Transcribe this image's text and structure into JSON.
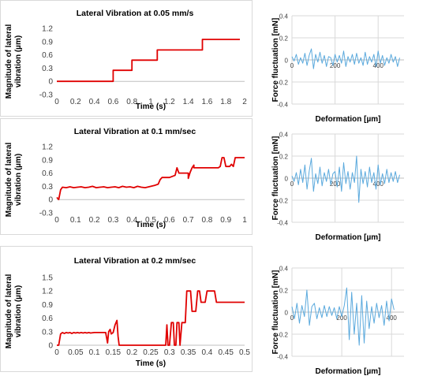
{
  "chart_data": [
    {
      "type": "line",
      "title": "Lateral Vibration at 0.05 mm/s",
      "xlabel": "Time (s)",
      "ylabel": "Magnitude of lateral vibration (µm)",
      "xlim": [
        0,
        2
      ],
      "ylim": [
        -0.3,
        1.2
      ],
      "x_ticks": [
        "0",
        "0.2",
        "0.4",
        "0.6",
        "0.8",
        "1",
        "1.2",
        "1.4",
        "1.6",
        "1.8",
        "2"
      ],
      "y_ticks": [
        "-0.3",
        "0",
        "0.3",
        "0.6",
        "0.9",
        "1.2"
      ],
      "grid": false,
      "color": "#e00000",
      "series": [
        {
          "x": [
            0,
            0.6,
            0.6,
            0.8,
            0.8,
            1.07,
            1.07,
            1.55,
            1.55,
            1.95
          ],
          "values": [
            0,
            0,
            0.25,
            0.25,
            0.48,
            0.48,
            0.71,
            0.71,
            0.95,
            0.95
          ]
        }
      ]
    },
    {
      "type": "line",
      "title": "",
      "xlabel": "Deformation [µm]",
      "ylabel": "Force fluctuation [mN]",
      "xlim": [
        0,
        520
      ],
      "ylim": [
        -0.4,
        0.4
      ],
      "x_ticks": [
        "0",
        "200",
        "400"
      ],
      "y_ticks": [
        "-0.4",
        "-0.2",
        "0",
        "0.2",
        "0.4"
      ],
      "grid": true,
      "color": "#5aa9dd",
      "series": [
        {
          "x": [
            0,
            10,
            20,
            30,
            40,
            50,
            60,
            70,
            80,
            90,
            100,
            110,
            120,
            130,
            140,
            150,
            160,
            170,
            180,
            190,
            200,
            210,
            220,
            230,
            240,
            250,
            260,
            270,
            280,
            290,
            300,
            310,
            320,
            330,
            340,
            350,
            360,
            370,
            380,
            390,
            400,
            410,
            420,
            430,
            440,
            450,
            460,
            470,
            480,
            490,
            500
          ],
          "values": [
            0.03,
            -0.01,
            0.05,
            -0.04,
            0.02,
            -0.03,
            0.06,
            -0.05,
            0.04,
            0.1,
            -0.08,
            0.05,
            -0.02,
            0.07,
            -0.03,
            0.04,
            -0.06,
            0.03,
            0.02,
            -0.05,
            0.05,
            -0.02,
            0.04,
            -0.03,
            0.08,
            -0.06,
            0.03,
            -0.02,
            0.05,
            -0.04,
            0.06,
            -0.03,
            0.02,
            -0.05,
            0.07,
            -0.04,
            0.03,
            -0.02,
            0.05,
            -0.06,
            0.08,
            -0.03,
            0.04,
            -0.05,
            0.02,
            -0.03,
            0.05,
            -0.02,
            0.03,
            -0.06,
            0.02
          ]
        }
      ]
    },
    {
      "type": "line",
      "title": "Lateral Vibration at 0.1 mm/sec",
      "xlabel": "Time (s)",
      "ylabel": "Magnitude of lateral vibration (µm)",
      "xlim": [
        0,
        1
      ],
      "ylim": [
        -0.3,
        1.2
      ],
      "x_ticks": [
        "0",
        "0.1",
        "0.2",
        "0.3",
        "0.4",
        "0.5",
        "0.6",
        "0.7",
        "0.8",
        "0.9",
        "1"
      ],
      "y_ticks": [
        "-0.3",
        "0",
        "0.3",
        "0.6",
        "0.9",
        "1.2"
      ],
      "grid": false,
      "color": "#e00000",
      "series": [
        {
          "x": [
            0,
            0.01,
            0.02,
            0.03,
            0.05,
            0.07,
            0.09,
            0.11,
            0.13,
            0.15,
            0.17,
            0.19,
            0.21,
            0.23,
            0.25,
            0.27,
            0.29,
            0.31,
            0.33,
            0.35,
            0.37,
            0.39,
            0.41,
            0.43,
            0.45,
            0.47,
            0.49,
            0.52,
            0.54,
            0.55,
            0.56,
            0.6,
            0.63,
            0.64,
            0.65,
            0.66,
            0.7,
            0.7,
            0.71,
            0.72,
            0.73,
            0.73,
            0.8,
            0.86,
            0.87,
            0.88,
            0.89,
            0.9,
            0.92,
            0.93,
            0.94,
            0.95,
            0.96,
            0.97,
            1.0
          ],
          "values": [
            0.05,
            0.0,
            0.22,
            0.28,
            0.27,
            0.29,
            0.27,
            0.28,
            0.29,
            0.27,
            0.28,
            0.3,
            0.27,
            0.28,
            0.29,
            0.27,
            0.28,
            0.29,
            0.27,
            0.3,
            0.28,
            0.29,
            0.27,
            0.3,
            0.28,
            0.27,
            0.29,
            0.32,
            0.35,
            0.45,
            0.5,
            0.5,
            0.55,
            0.72,
            0.6,
            0.6,
            0.6,
            0.48,
            0.62,
            0.72,
            0.78,
            0.72,
            0.72,
            0.72,
            0.75,
            0.95,
            0.95,
            0.75,
            0.75,
            0.8,
            0.75,
            0.95,
            0.95,
            0.95,
            0.95
          ]
        }
      ]
    },
    {
      "type": "line",
      "title": "",
      "xlabel": "Deformation [µm]",
      "ylabel": "Force fluctuation [mN]",
      "xlim": [
        0,
        520
      ],
      "ylim": [
        -0.4,
        0.4
      ],
      "x_ticks": [
        "0",
        "200",
        "400"
      ],
      "y_ticks": [
        "-0.4",
        "-0.2",
        "0",
        "0.2",
        "0.4"
      ],
      "grid": true,
      "color": "#5aa9dd",
      "series": [
        {
          "x": [
            0,
            10,
            20,
            30,
            40,
            50,
            60,
            70,
            80,
            90,
            100,
            110,
            120,
            130,
            140,
            150,
            160,
            170,
            180,
            190,
            200,
            210,
            220,
            230,
            240,
            250,
            260,
            270,
            280,
            290,
            300,
            310,
            320,
            330,
            340,
            350,
            360,
            370,
            380,
            390,
            400,
            410,
            420,
            430,
            440,
            450,
            460,
            470,
            480,
            490,
            500
          ],
          "values": [
            0.02,
            -0.03,
            0.05,
            -0.06,
            0.08,
            -0.04,
            0.12,
            -0.1,
            0.06,
            0.18,
            -0.12,
            0.04,
            -0.05,
            0.1,
            -0.07,
            0.05,
            -0.03,
            0.08,
            -0.06,
            0.04,
            0.06,
            -0.08,
            0.1,
            -0.12,
            0.14,
            -0.05,
            0.06,
            -0.1,
            0.05,
            -0.04,
            0.2,
            -0.22,
            0.08,
            -0.05,
            0.06,
            -0.08,
            0.1,
            -0.04,
            0.05,
            -0.1,
            0.12,
            -0.06,
            0.04,
            -0.05,
            0.08,
            -0.04,
            0.05,
            -0.03,
            0.06,
            -0.04,
            0.03
          ]
        }
      ]
    },
    {
      "type": "line",
      "title": "Lateral Vibration at 0.2 mm/sec",
      "xlabel": "Time (s)",
      "ylabel": "Magnitude of lateral vibration (µm)",
      "xlim": [
        0,
        0.5
      ],
      "ylim": [
        0,
        1.5
      ],
      "x_ticks": [
        "0",
        "0.05",
        "0.1",
        "0.15",
        "0.2",
        "0.25",
        "0.3",
        "0.35",
        "0.4",
        "0.45",
        "0.5"
      ],
      "y_ticks": [
        "0",
        "0.3",
        "0.6",
        "0.9",
        "1.2",
        "1.5"
      ],
      "grid": false,
      "color": "#e00000",
      "series": [
        {
          "x": [
            0,
            0.005,
            0.01,
            0.015,
            0.02,
            0.025,
            0.03,
            0.035,
            0.04,
            0.045,
            0.05,
            0.055,
            0.06,
            0.065,
            0.07,
            0.075,
            0.08,
            0.085,
            0.09,
            0.1,
            0.13,
            0.135,
            0.138,
            0.142,
            0.145,
            0.15,
            0.155,
            0.16,
            0.163,
            0.166,
            0.17,
            0.29,
            0.293,
            0.296,
            0.3,
            0.305,
            0.31,
            0.313,
            0.317,
            0.32,
            0.325,
            0.328,
            0.333,
            0.337,
            0.342,
            0.346,
            0.35,
            0.356,
            0.36,
            0.365,
            0.37,
            0.375,
            0.38,
            0.384,
            0.39,
            0.395,
            0.4,
            0.405,
            0.41,
            0.415,
            0.42,
            0.425,
            0.43,
            0.435,
            0.44,
            0.5
          ],
          "values": [
            0.0,
            0.0,
            0.25,
            0.28,
            0.26,
            0.28,
            0.27,
            0.28,
            0.26,
            0.28,
            0.27,
            0.28,
            0.27,
            0.28,
            0.27,
            0.28,
            0.27,
            0.28,
            0.27,
            0.28,
            0.28,
            0.05,
            0.3,
            0.35,
            0.25,
            0.28,
            0.45,
            0.55,
            0.2,
            0.0,
            0.0,
            0.0,
            0.45,
            0.0,
            0.0,
            0.5,
            0.5,
            0.0,
            0.0,
            0.5,
            0.5,
            0.0,
            0.5,
            0.5,
            0.5,
            1.2,
            1.2,
            1.2,
            0.75,
            0.75,
            0.75,
            1.2,
            1.2,
            0.95,
            0.95,
            0.95,
            1.2,
            1.2,
            1.2,
            1.2,
            1.2,
            0.95,
            0.95,
            0.95,
            0.95,
            0.95
          ]
        }
      ]
    },
    {
      "type": "line",
      "title": "",
      "xlabel": "Deformation [µm]",
      "ylabel": "Force fluctuation [mN]",
      "xlim": [
        0,
        450
      ],
      "ylim": [
        -0.4,
        0.4
      ],
      "x_ticks": [
        "0",
        "200",
        "400"
      ],
      "y_ticks": [
        "-0.4",
        "-0.2",
        "0",
        "0.2",
        "0.4"
      ],
      "grid": true,
      "color": "#5aa9dd",
      "series": [
        {
          "x": [
            0,
            10,
            20,
            30,
            40,
            50,
            60,
            70,
            80,
            90,
            100,
            110,
            120,
            130,
            140,
            150,
            160,
            170,
            180,
            190,
            200,
            210,
            220,
            230,
            240,
            250,
            260,
            270,
            280,
            290,
            300,
            310,
            320,
            330,
            340,
            350,
            360,
            370,
            380,
            390,
            400,
            410
          ],
          "values": [
            0.05,
            -0.06,
            0.08,
            -0.1,
            0.06,
            -0.04,
            0.2,
            -0.12,
            0.05,
            0.08,
            -0.06,
            0.04,
            -0.05,
            0.06,
            -0.04,
            0.05,
            -0.03,
            0.04,
            -0.06,
            0.05,
            -0.04,
            0.06,
            0.22,
            -0.25,
            0.18,
            -0.2,
            0.08,
            -0.3,
            0.15,
            -0.28,
            0.1,
            -0.15,
            0.05,
            -0.1,
            0.08,
            -0.05,
            0.06,
            -0.12,
            0.1,
            -0.08,
            0.12,
            0.02
          ]
        }
      ]
    }
  ]
}
